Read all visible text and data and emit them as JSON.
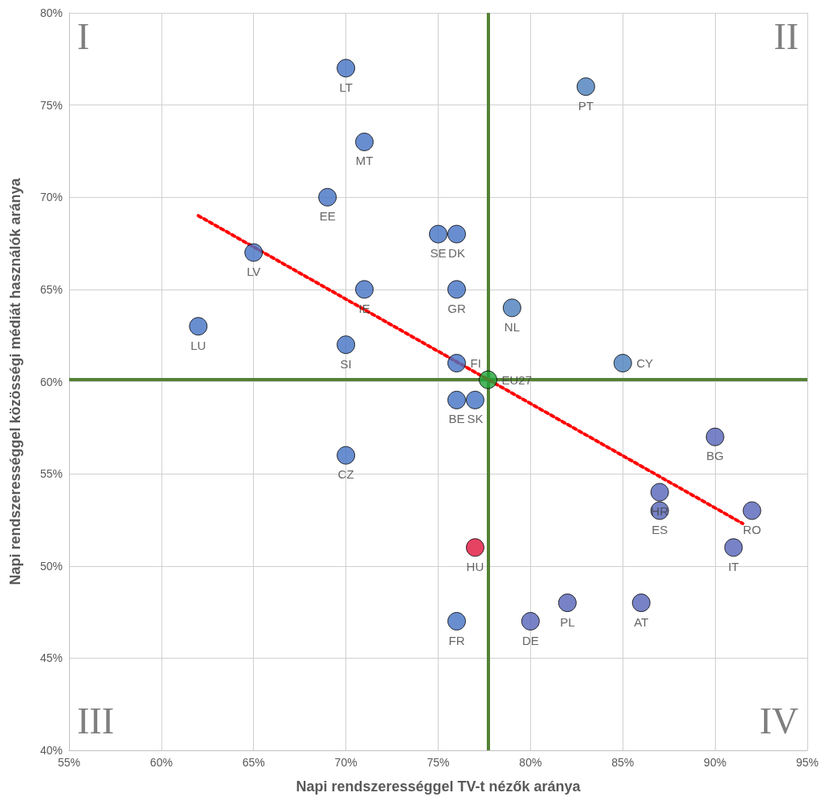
{
  "chart_data": {
    "type": "scatter",
    "xlabel": "Napi rendszerességgel TV-t nézők aránya",
    "ylabel": "Napi rendszerességgel közösségi médiát használók aránya",
    "xlim": [
      55,
      95
    ],
    "xticks": [
      {
        "value": 55,
        "label": "55%"
      },
      {
        "value": 60,
        "label": "60%"
      },
      {
        "value": 65,
        "label": "65%"
      },
      {
        "value": 70,
        "label": "70%"
      },
      {
        "value": 75,
        "label": "75%"
      },
      {
        "value": 80,
        "label": "80%"
      },
      {
        "value": 85,
        "label": "85%"
      },
      {
        "value": 90,
        "label": "90%"
      },
      {
        "value": 95,
        "label": "95%"
      }
    ],
    "ylim": [
      40,
      80
    ],
    "yticks": [
      {
        "value": 40,
        "label": "40%"
      },
      {
        "value": 45,
        "label": "45%"
      },
      {
        "value": 50,
        "label": "50%"
      },
      {
        "value": 55,
        "label": "55%"
      },
      {
        "value": 60,
        "label": "60%"
      },
      {
        "value": 65,
        "label": "65%"
      },
      {
        "value": 70,
        "label": "70%"
      },
      {
        "value": 75,
        "label": "75%"
      },
      {
        "value": 80,
        "label": "80%"
      }
    ],
    "grid": true,
    "marker": "circle",
    "series": [
      {
        "x": [
          70,
          83,
          71,
          69,
          75,
          76,
          65,
          71,
          76,
          79,
          62,
          70,
          76,
          85,
          77.7,
          76,
          77,
          90,
          70,
          87,
          87,
          92,
          77,
          91,
          82,
          86,
          76,
          80
        ],
        "values": [
          77,
          76,
          73,
          70,
          68,
          68,
          67,
          65,
          65,
          64,
          63,
          62,
          61,
          61,
          60.1,
          59,
          59,
          57,
          56,
          54,
          53,
          53,
          51,
          51,
          48,
          48,
          47,
          47
        ],
        "colors": [
          "#4472c4",
          "#4a7ebb",
          "#4472c4",
          "#4472c4",
          "#4472c4",
          "#4472c4",
          "#4472c4",
          "#4472c4",
          "#4472c4",
          "#4a7ebb",
          "#4472c4",
          "#4472c4",
          "#4472c4",
          "#4a7ebb",
          "#1fa33a",
          "#4472c4",
          "#4472c4",
          "#5564b8",
          "#4472c4",
          "#5564b8",
          "#5564b8",
          "#5564b8",
          "#e0143c",
          "#5564b8",
          "#5564b8",
          "#5564b8",
          "#4472c4",
          "#5564b8"
        ]
      },
      {
        "type": "line",
        "x": [
          62,
          91.5
        ],
        "values": [
          69,
          52.3
        ],
        "color": "#ff0000",
        "line_style": "dotted",
        "marker": "none"
      }
    ],
    "ref_lines": [
      {
        "axis": "x",
        "value": 77.7,
        "color": "#548235"
      },
      {
        "axis": "y",
        "value": 60.1,
        "color": "#548235"
      }
    ],
    "annotations": [
      "I",
      "II",
      "III",
      "IV",
      {
        "text": "LT",
        "x": 70,
        "y": 77
      },
      {
        "text": "PT",
        "x": 83,
        "y": 76
      },
      {
        "text": "MT",
        "x": 71,
        "y": 73
      },
      {
        "text": "EE",
        "x": 69,
        "y": 70
      },
      {
        "text": "SE",
        "x": 75,
        "y": 68
      },
      {
        "text": "DK",
        "x": 76,
        "y": 68
      },
      {
        "text": "LV",
        "x": 65,
        "y": 67
      },
      {
        "text": "IE",
        "x": 71,
        "y": 65
      },
      {
        "text": "GR",
        "x": 76,
        "y": 65
      },
      {
        "text": "NL",
        "x": 79,
        "y": 64
      },
      {
        "text": "LU",
        "x": 62,
        "y": 63
      },
      {
        "text": "SI",
        "x": 70,
        "y": 62
      },
      {
        "text": "FI",
        "x": 76,
        "y": 61
      },
      {
        "text": "CY",
        "x": 85,
        "y": 61
      },
      {
        "text": "EU27",
        "x": 77.7,
        "y": 60.1
      },
      {
        "text": "BE",
        "x": 76,
        "y": 59
      },
      {
        "text": "SK",
        "x": 77,
        "y": 59
      },
      {
        "text": "BG",
        "x": 90,
        "y": 57
      },
      {
        "text": "CZ",
        "x": 70,
        "y": 56
      },
      {
        "text": "HR",
        "x": 87,
        "y": 54
      },
      {
        "text": "ES",
        "x": 87,
        "y": 53
      },
      {
        "text": "RO",
        "x": 92,
        "y": 53
      },
      {
        "text": "HU",
        "x": 77,
        "y": 51
      },
      {
        "text": "IT",
        "x": 91,
        "y": 51
      },
      {
        "text": "PL",
        "x": 82,
        "y": 48
      },
      {
        "text": "AT",
        "x": 86,
        "y": 48
      },
      {
        "text": "FR",
        "x": 76,
        "y": 47
      },
      {
        "text": "DE",
        "x": 80,
        "y": 47
      }
    ]
  }
}
